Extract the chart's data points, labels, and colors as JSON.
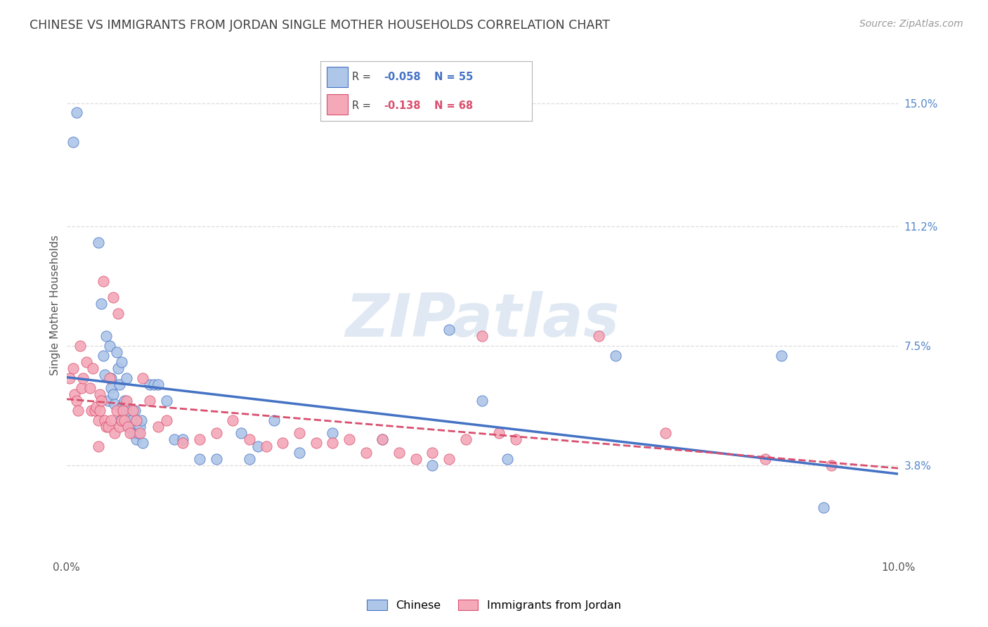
{
  "title": "CHINESE VS IMMIGRANTS FROM JORDAN SINGLE MOTHER HOUSEHOLDS CORRELATION CHART",
  "source": "Source: ZipAtlas.com",
  "ylabel": "Single Mother Households",
  "watermark": "ZIPatlas",
  "legend_label1": "Chinese",
  "legend_label2": "Immigrants from Jordan",
  "R1": -0.058,
  "N1": 55,
  "R2": -0.138,
  "N2": 68,
  "color1": "#aec6e8",
  "color2": "#f4a8b8",
  "line_color1": "#4472c4",
  "line_color2": "#d94f6e",
  "x_min": 0.0,
  "x_max": 10.0,
  "y_min": 1.0,
  "y_max": 16.5,
  "yticks": [
    3.8,
    7.5,
    11.2,
    15.0
  ],
  "xtick_positions": [
    0.0,
    10.0
  ],
  "xtick_labels": [
    "0.0%",
    "10.0%"
  ],
  "background_color": "#ffffff",
  "title_color": "#404040",
  "source_color": "#999999",
  "right_label_color": "#5588cc",
  "grid_color": "#dddddd",
  "chinese_x": [
    0.08,
    0.12,
    0.38,
    0.42,
    0.44,
    0.46,
    0.48,
    0.5,
    0.52,
    0.54,
    0.54,
    0.56,
    0.58,
    0.6,
    0.62,
    0.64,
    0.65,
    0.66,
    0.68,
    0.7,
    0.72,
    0.72,
    0.74,
    0.76,
    0.78,
    0.8,
    0.82,
    0.84,
    0.86,
    0.88,
    0.9,
    0.92,
    1.0,
    1.05,
    1.1,
    1.2,
    1.3,
    1.4,
    1.6,
    1.8,
    2.2,
    2.5,
    2.8,
    3.2,
    3.8,
    4.6,
    5.0,
    5.3,
    6.6,
    8.6,
    9.1,
    2.1,
    2.3,
    4.4,
    0.66
  ],
  "chinese_y": [
    13.8,
    14.7,
    10.7,
    8.8,
    7.2,
    6.6,
    7.8,
    5.8,
    7.5,
    6.5,
    6.2,
    6.0,
    5.7,
    7.3,
    6.8,
    6.3,
    5.2,
    5.6,
    5.4,
    5.8,
    5.5,
    6.5,
    5.0,
    5.4,
    5.2,
    4.8,
    5.5,
    4.6,
    4.8,
    5.0,
    5.2,
    4.5,
    6.3,
    6.3,
    6.3,
    5.8,
    4.6,
    4.6,
    4.0,
    4.0,
    4.0,
    5.2,
    4.2,
    4.8,
    4.6,
    8.0,
    5.8,
    4.0,
    7.2,
    7.2,
    2.5,
    4.8,
    4.4,
    3.8,
    7.0
  ],
  "jordan_x": [
    0.04,
    0.08,
    0.1,
    0.12,
    0.14,
    0.16,
    0.18,
    0.2,
    0.24,
    0.28,
    0.3,
    0.32,
    0.34,
    0.36,
    0.38,
    0.4,
    0.4,
    0.42,
    0.44,
    0.46,
    0.48,
    0.5,
    0.52,
    0.54,
    0.56,
    0.58,
    0.6,
    0.62,
    0.64,
    0.66,
    0.68,
    0.7,
    0.72,
    0.74,
    0.76,
    0.8,
    0.84,
    0.88,
    0.92,
    1.0,
    1.1,
    1.2,
    1.4,
    1.6,
    1.8,
    2.0,
    2.2,
    2.4,
    2.6,
    2.8,
    3.0,
    3.2,
    3.4,
    3.6,
    3.8,
    4.0,
    4.2,
    4.4,
    4.6,
    4.8,
    5.0,
    5.2,
    5.4,
    6.4,
    7.2,
    8.4,
    9.2,
    0.38
  ],
  "jordan_y": [
    6.5,
    6.8,
    6.0,
    5.8,
    5.5,
    7.5,
    6.2,
    6.5,
    7.0,
    6.2,
    5.5,
    6.8,
    5.5,
    5.6,
    5.2,
    6.0,
    5.5,
    5.8,
    9.5,
    5.2,
    5.0,
    5.0,
    6.5,
    5.2,
    9.0,
    4.8,
    5.5,
    8.5,
    5.0,
    5.2,
    5.5,
    5.2,
    5.8,
    5.0,
    4.8,
    5.5,
    5.2,
    4.8,
    6.5,
    5.8,
    5.0,
    5.2,
    4.5,
    4.6,
    4.8,
    5.2,
    4.6,
    4.4,
    4.5,
    4.8,
    4.5,
    4.5,
    4.6,
    4.2,
    4.6,
    4.2,
    4.0,
    4.2,
    4.0,
    4.6,
    7.8,
    4.8,
    4.6,
    7.8,
    4.8,
    4.0,
    3.8,
    4.4
  ]
}
